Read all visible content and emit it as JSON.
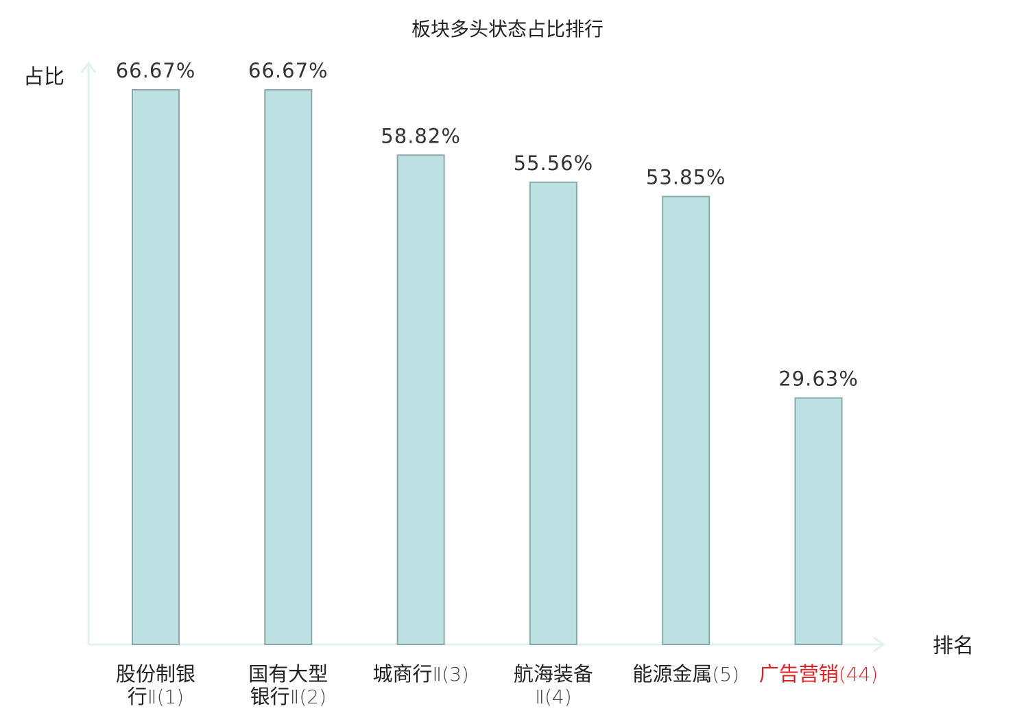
{
  "chart_data": {
    "type": "bar",
    "title": "板块多头状态占比排行",
    "ylabel": "占比",
    "xlabel": "排名",
    "ylim": [
      0,
      70
    ],
    "grid": false,
    "legend": "none",
    "categories": [
      {
        "lines": [
          "股份制银",
          "行Ⅱ(1)"
        ],
        "highlight": false
      },
      {
        "lines": [
          "国有大型",
          "银行Ⅱ(2)"
        ],
        "highlight": false
      },
      {
        "lines": [
          "城商行Ⅱ(3)"
        ],
        "highlight": false
      },
      {
        "lines": [
          "航海装备",
          "Ⅱ(4)"
        ],
        "highlight": false
      },
      {
        "lines": [
          "能源金属(5)"
        ],
        "highlight": false
      },
      {
        "lines": [
          "广告营销(44)"
        ],
        "highlight": true
      }
    ],
    "values": [
      66.67,
      66.67,
      58.82,
      55.56,
      53.85,
      29.63
    ],
    "value_labels": [
      "66.67%",
      "66.67%",
      "58.82%",
      "55.56%",
      "53.85%",
      "29.63%"
    ],
    "colors": {
      "bar_fill": "#bde0e3",
      "bar_stroke": "#8aa9ab",
      "axis": "#e0f2ef",
      "highlight_text": "#e02020"
    }
  }
}
